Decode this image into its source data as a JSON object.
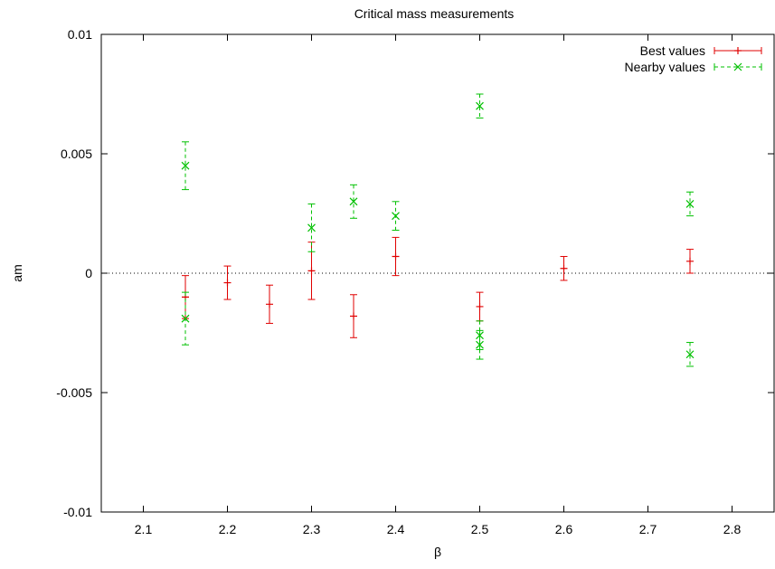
{
  "colors": {
    "best": "#e00000",
    "nearby": "#00c000",
    "axis": "#000000",
    "zero_line": "#000000"
  },
  "chart_data": {
    "type": "scatter",
    "title": "Critical mass measurements",
    "xlabel": "β",
    "ylabel": "am",
    "xlim": [
      2.05,
      2.85
    ],
    "ylim": [
      -0.01,
      0.01
    ],
    "xticks": [
      2.1,
      2.2,
      2.3,
      2.4,
      2.5,
      2.6,
      2.7,
      2.8
    ],
    "xtick_labels": [
      "2.1",
      "2.2",
      "2.3",
      "2.4",
      "2.5",
      "2.6",
      "2.7",
      "2.8"
    ],
    "yticks": [
      -0.01,
      -0.005,
      0,
      0.005,
      0.01
    ],
    "ytick_labels": [
      "-0.01",
      "-0.005",
      "0",
      "0.005",
      "0.01"
    ],
    "zero_line": true,
    "grid": false,
    "legend_position": "top-right",
    "series": [
      {
        "name": "Best values",
        "color_key": "best",
        "marker": "plus",
        "points": [
          {
            "x": 2.15,
            "y": -0.001,
            "err": 0.0009
          },
          {
            "x": 2.2,
            "y": -0.0004,
            "err": 0.0007
          },
          {
            "x": 2.25,
            "y": -0.0013,
            "err": 0.0008
          },
          {
            "x": 2.3,
            "y": 0.0001,
            "err": 0.0012
          },
          {
            "x": 2.35,
            "y": -0.0018,
            "err": 0.0009
          },
          {
            "x": 2.4,
            "y": 0.0007,
            "err": 0.0008
          },
          {
            "x": 2.5,
            "y": -0.0014,
            "err": 0.0006
          },
          {
            "x": 2.6,
            "y": 0.0002,
            "err": 0.0005
          },
          {
            "x": 2.75,
            "y": 0.0005,
            "err": 0.0005
          }
        ]
      },
      {
        "name": "Nearby values",
        "color_key": "nearby",
        "marker": "cross",
        "points": [
          {
            "x": 2.15,
            "y": 0.0045,
            "err": 0.001
          },
          {
            "x": 2.15,
            "y": -0.0019,
            "err": 0.0011
          },
          {
            "x": 2.3,
            "y": 0.0019,
            "err": 0.001
          },
          {
            "x": 2.35,
            "y": 0.003,
            "err": 0.0007
          },
          {
            "x": 2.4,
            "y": 0.0024,
            "err": 0.0006
          },
          {
            "x": 2.5,
            "y": 0.007,
            "err": 0.0005
          },
          {
            "x": 2.5,
            "y": -0.0026,
            "err": 0.0006
          },
          {
            "x": 2.5,
            "y": -0.003,
            "err": 0.0006
          },
          {
            "x": 2.75,
            "y": 0.0029,
            "err": 0.0005
          },
          {
            "x": 2.75,
            "y": -0.0034,
            "err": 0.0005
          }
        ]
      }
    ]
  }
}
